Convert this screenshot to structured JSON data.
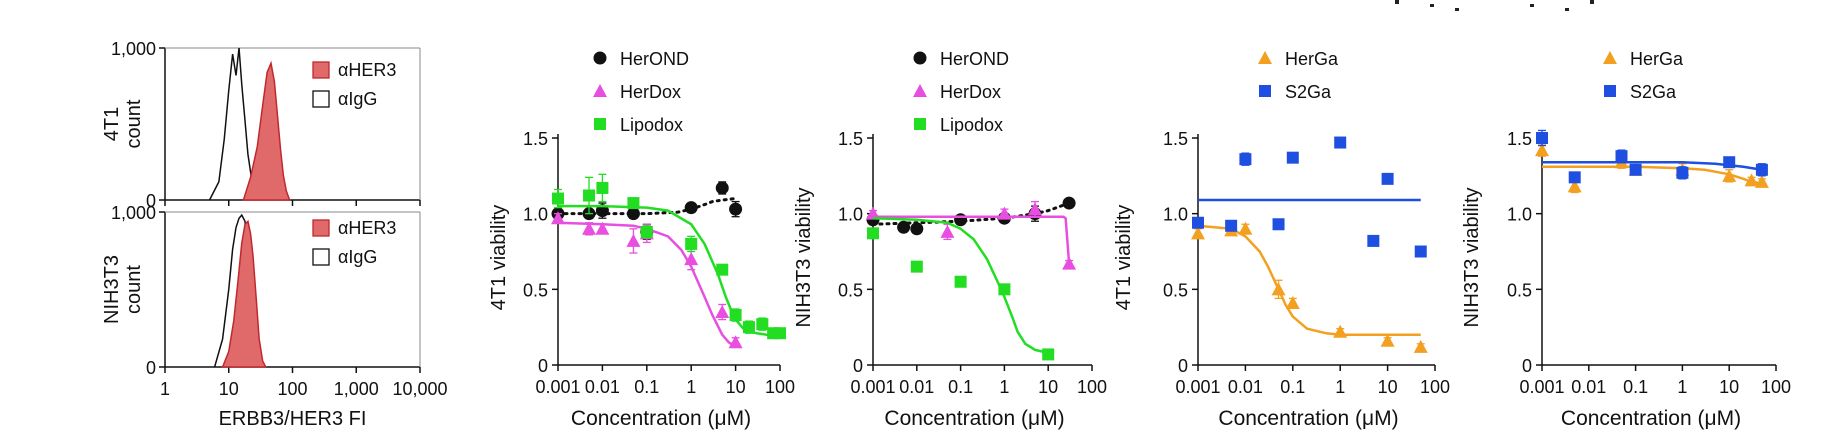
{
  "colors": {
    "her3_fill": "#e06a6a",
    "her3_edge": "#c0282e",
    "igg": "#111111",
    "herond": "#111111",
    "herdox": "#e84fe0",
    "lipodox": "#22dd22",
    "herga": "#f3a021",
    "s2ga": "#1f4fe0"
  },
  "chart_data": [
    {
      "id": "hist-4t1",
      "type": "histogram",
      "ylabel": [
        "4T1",
        "count"
      ],
      "xlabel": "",
      "xscale": "log",
      "xlim": [
        1,
        10000
      ],
      "ylim": [
        0,
        1000
      ],
      "yticks": [
        "1,000",
        "0"
      ],
      "legend": [
        {
          "label": "αHER3",
          "style": "filled-red"
        },
        {
          "label": "αIgG",
          "style": "open"
        }
      ],
      "series": [
        {
          "name": "αIgG",
          "style": "open",
          "x": [
            5,
            7,
            8.5,
            10,
            11.5,
            13,
            14.5,
            16,
            18,
            20,
            23,
            26,
            30
          ],
          "y": [
            0,
            120,
            400,
            720,
            960,
            820,
            1000,
            760,
            520,
            300,
            130,
            40,
            0
          ]
        },
        {
          "name": "αHER3",
          "style": "filled-red",
          "x": [
            17,
            22,
            28,
            34,
            40,
            46,
            52,
            58,
            65,
            72,
            80,
            90
          ],
          "y": [
            0,
            150,
            350,
            620,
            840,
            900,
            780,
            560,
            330,
            160,
            60,
            0
          ]
        }
      ]
    },
    {
      "id": "hist-nih3t3",
      "type": "histogram",
      "ylabel": [
        "NIH3T3",
        "count"
      ],
      "xlabel": "ERBB3/HER3 FI",
      "xscale": "log",
      "xlim": [
        1,
        10000
      ],
      "ylim": [
        0,
        1000
      ],
      "yticks": [
        "1,000",
        "0"
      ],
      "xticks": [
        "1",
        "10",
        "100",
        "1,000",
        "10,000"
      ],
      "legend": [
        {
          "label": "αHER3",
          "style": "filled-red"
        },
        {
          "label": "αIgG",
          "style": "open"
        }
      ],
      "series": [
        {
          "name": "αIgG",
          "style": "open",
          "x": [
            6,
            8,
            10,
            11.5,
            13,
            14.5,
            16,
            18,
            20,
            22,
            24,
            27,
            31
          ],
          "y": [
            0,
            180,
            500,
            760,
            900,
            960,
            980,
            940,
            640,
            320,
            120,
            30,
            0
          ]
        },
        {
          "name": "αHER3",
          "style": "filled-red",
          "x": [
            8,
            10,
            12,
            14,
            16,
            18,
            20,
            22,
            24,
            27,
            30,
            34,
            38
          ],
          "y": [
            0,
            100,
            300,
            560,
            800,
            920,
            940,
            860,
            720,
            440,
            180,
            40,
            0
          ]
        }
      ]
    },
    {
      "id": "viab-4t1-dox",
      "type": "scatter",
      "xlabel": "Concentration (μM)",
      "ylabel": "4T1 viability",
      "xscale": "log",
      "xlim": [
        0.001,
        100
      ],
      "ylim": [
        0,
        1.5
      ],
      "xticks": [
        "0.001",
        "0.01",
        "0.1",
        "1",
        "10",
        "100"
      ],
      "yticks": [
        "0",
        "0.5",
        "1.0",
        "1.5"
      ],
      "legend": [
        "HerOND",
        "HerDox",
        "Lipodox"
      ],
      "series": [
        {
          "name": "HerOND",
          "color": "herond",
          "marker": "circle",
          "fit": "dotted",
          "x": [
            0.001,
            0.005,
            0.01,
            0.05,
            0.1,
            1,
            5,
            10
          ],
          "y": [
            1.0,
            1.0,
            1.02,
            1.0,
            0.88,
            1.04,
            1.17,
            1.03
          ],
          "err": [
            0.03,
            0.03,
            0.05,
            0.03,
            0.05,
            0.03,
            0.04,
            0.05
          ],
          "fit_x": [
            0.001,
            0.01,
            0.1,
            0.5,
            1,
            2,
            3,
            5,
            10
          ],
          "fit_y": [
            1.0,
            1.0,
            1.0,
            1.01,
            1.03,
            1.06,
            1.08,
            1.09,
            1.1
          ]
        },
        {
          "name": "HerDox",
          "color": "herdox",
          "marker": "triangle",
          "fit": "solid",
          "x": [
            0.001,
            0.005,
            0.01,
            0.05,
            0.1,
            1,
            5,
            10
          ],
          "y": [
            0.97,
            0.9,
            0.9,
            0.82,
            0.87,
            0.7,
            0.35,
            0.15
          ],
          "err": [
            0.03,
            0.04,
            0.03,
            0.08,
            0.06,
            0.07,
            0.05,
            0.03
          ],
          "fit_x": [
            0.001,
            0.01,
            0.05,
            0.1,
            0.3,
            0.6,
            1,
            2,
            3,
            5,
            7,
            10
          ],
          "fit_y": [
            0.94,
            0.93,
            0.92,
            0.9,
            0.85,
            0.76,
            0.65,
            0.45,
            0.33,
            0.2,
            0.15,
            0.12
          ]
        },
        {
          "name": "Lipodox",
          "color": "lipodox",
          "marker": "square",
          "fit": "solid",
          "x": [
            0.001,
            0.005,
            0.01,
            0.05,
            0.1,
            1,
            5,
            10,
            20,
            40,
            70,
            100
          ],
          "y": [
            1.1,
            1.12,
            1.17,
            1.07,
            0.88,
            0.8,
            0.63,
            0.33,
            0.25,
            0.27,
            0.21,
            0.21
          ],
          "err": [
            0.06,
            0.12,
            0.09,
            0.03,
            0.04,
            0.05,
            0.03,
            0.04,
            0.04,
            0.04,
            0.03,
            0.03
          ],
          "fit_x": [
            0.001,
            0.01,
            0.1,
            0.3,
            1,
            2,
            4,
            6,
            8,
            10,
            15,
            20,
            30,
            50,
            100
          ],
          "fit_y": [
            1.05,
            1.05,
            1.04,
            1.02,
            0.93,
            0.8,
            0.6,
            0.45,
            0.36,
            0.3,
            0.24,
            0.22,
            0.21,
            0.2,
            0.2
          ]
        }
      ]
    },
    {
      "id": "viab-nih3t3-dox",
      "type": "scatter",
      "xlabel": "Concentration (μM)",
      "ylabel": "NIH3T3 viability",
      "xscale": "log",
      "xlim": [
        0.001,
        100
      ],
      "ylim": [
        0,
        1.5
      ],
      "xticks": [
        "0.001",
        "0.01",
        "0.1",
        "1",
        "10",
        "100"
      ],
      "yticks": [
        "0",
        "0.5",
        "1.0",
        "1.5"
      ],
      "legend": [
        "HerOND",
        "HerDox",
        "Lipodox"
      ],
      "series": [
        {
          "name": "HerOND",
          "color": "herond",
          "marker": "circle",
          "fit": "dotted",
          "x": [
            0.001,
            0.005,
            0.01,
            0.1,
            1,
            5,
            30
          ],
          "y": [
            0.96,
            0.91,
            0.9,
            0.96,
            0.97,
            1.0,
            1.07
          ],
          "err": [
            0.02,
            0.02,
            0.02,
            0.02,
            0.02,
            0.05,
            0.02
          ],
          "fit_x": [
            0.001,
            0.01,
            0.1,
            1,
            5,
            10,
            30
          ],
          "fit_y": [
            0.93,
            0.94,
            0.95,
            0.97,
            1.0,
            1.02,
            1.07
          ]
        },
        {
          "name": "HerDox",
          "color": "herdox",
          "marker": "triangle",
          "fit": "solid",
          "x": [
            0.001,
            0.05,
            1,
            5,
            30
          ],
          "y": [
            1.0,
            0.88,
            1.0,
            1.03,
            0.67
          ],
          "err": [
            0.02,
            0.05,
            0.03,
            0.05,
            0.02
          ],
          "fit_x": [
            0.001,
            0.1,
            1,
            10,
            22,
            25,
            30
          ],
          "fit_y": [
            0.98,
            0.98,
            0.98,
            0.98,
            0.98,
            0.97,
            0.67
          ]
        },
        {
          "name": "Lipodox",
          "color": "lipodox",
          "marker": "square",
          "fit": "solid",
          "x": [
            0.001,
            0.01,
            0.1,
            1,
            10
          ],
          "y": [
            0.87,
            0.65,
            0.55,
            0.5,
            0.07
          ],
          "fit_x": [
            0.001,
            0.01,
            0.05,
            0.1,
            0.2,
            0.4,
            0.7,
            1,
            1.5,
            2,
            3,
            5,
            10
          ],
          "fit_y": [
            0.97,
            0.96,
            0.94,
            0.9,
            0.83,
            0.7,
            0.55,
            0.45,
            0.32,
            0.22,
            0.14,
            0.1,
            0.08
          ]
        }
      ]
    },
    {
      "id": "viab-4t1-ga",
      "type": "scatter",
      "xlabel": "Concentration (μM)",
      "ylabel": "4T1 viability",
      "xscale": "log",
      "xlim": [
        0.001,
        100
      ],
      "ylim": [
        0,
        1.5
      ],
      "xticks": [
        "0.001",
        "0.01",
        "0.1",
        "1",
        "10",
        "100"
      ],
      "yticks": [
        "0",
        "0.5",
        "1.0",
        "1.5"
      ],
      "legend": [
        "HerGa",
        "S2Ga"
      ],
      "series": [
        {
          "name": "HerGa",
          "color": "herga",
          "marker": "triangle",
          "fit": "solid",
          "x": [
            0.001,
            0.005,
            0.01,
            0.05,
            0.1,
            1,
            10,
            50
          ],
          "y": [
            0.87,
            0.89,
            0.9,
            0.5,
            0.41,
            0.22,
            0.16,
            0.12
          ],
          "err": [
            0.03,
            0.03,
            0.03,
            0.06,
            0.03,
            0.02,
            0.02,
            0.02
          ],
          "fit_x": [
            0.001,
            0.005,
            0.01,
            0.02,
            0.03,
            0.05,
            0.07,
            0.1,
            0.2,
            0.5,
            1,
            10,
            50
          ],
          "fit_y": [
            0.92,
            0.9,
            0.85,
            0.75,
            0.65,
            0.5,
            0.4,
            0.32,
            0.24,
            0.21,
            0.2,
            0.2,
            0.2
          ]
        },
        {
          "name": "S2Ga",
          "color": "s2ga",
          "marker": "square",
          "fit": "solid",
          "x": [
            0.001,
            0.005,
            0.01,
            0.05,
            0.1,
            1,
            5,
            10,
            50
          ],
          "y": [
            0.94,
            0.92,
            1.36,
            0.93,
            1.37,
            1.47,
            0.82,
            1.23,
            0.75
          ],
          "err": [
            0.02,
            0.02,
            0.04,
            0.02,
            0.02,
            0.02,
            0.02,
            0.02,
            0.03
          ],
          "fit_x": [
            0.001,
            50
          ],
          "fit_y": [
            1.09,
            1.09
          ]
        }
      ]
    },
    {
      "id": "viab-nih3t3-ga",
      "type": "scatter",
      "xlabel": "Concentration (μM)",
      "ylabel": "NIH3T3 viability",
      "xscale": "log",
      "xlim": [
        0.001,
        100
      ],
      "ylim": [
        0,
        1.5
      ],
      "xticks": [
        "0.001",
        "0.01",
        "0.1",
        "1",
        "10",
        "100"
      ],
      "yticks": [
        "0",
        "0.5",
        "1.0",
        "1.5"
      ],
      "legend": [
        "HerGa",
        "S2Ga"
      ],
      "series": [
        {
          "name": "HerGa",
          "color": "herga",
          "marker": "triangle",
          "fit": "solid",
          "x": [
            0.001,
            0.005,
            0.05,
            0.1,
            1,
            10,
            30,
            50
          ],
          "y": [
            1.42,
            1.18,
            1.34,
            1.29,
            1.29,
            1.25,
            1.22,
            1.21
          ],
          "err": [
            0.04,
            0.04,
            0.04,
            0.03,
            0.04,
            0.04,
            0.02,
            0.02
          ],
          "fit_x": [
            0.001,
            0.1,
            1,
            3,
            10,
            20,
            30,
            50
          ],
          "fit_y": [
            1.31,
            1.31,
            1.3,
            1.29,
            1.26,
            1.23,
            1.21,
            1.2
          ]
        },
        {
          "name": "S2Ga",
          "color": "s2ga",
          "marker": "square",
          "fit": "solid",
          "x": [
            0.001,
            0.005,
            0.05,
            0.1,
            1,
            10,
            50
          ],
          "y": [
            1.5,
            1.24,
            1.38,
            1.29,
            1.27,
            1.34,
            1.29
          ],
          "err": [
            0.05,
            0.03,
            0.04,
            0.03,
            0.04,
            0.02,
            0.04
          ],
          "fit_x": [
            0.001,
            0.1,
            1,
            5,
            10,
            20,
            50
          ],
          "fit_y": [
            1.34,
            1.34,
            1.34,
            1.33,
            1.32,
            1.31,
            1.29
          ]
        }
      ]
    }
  ]
}
